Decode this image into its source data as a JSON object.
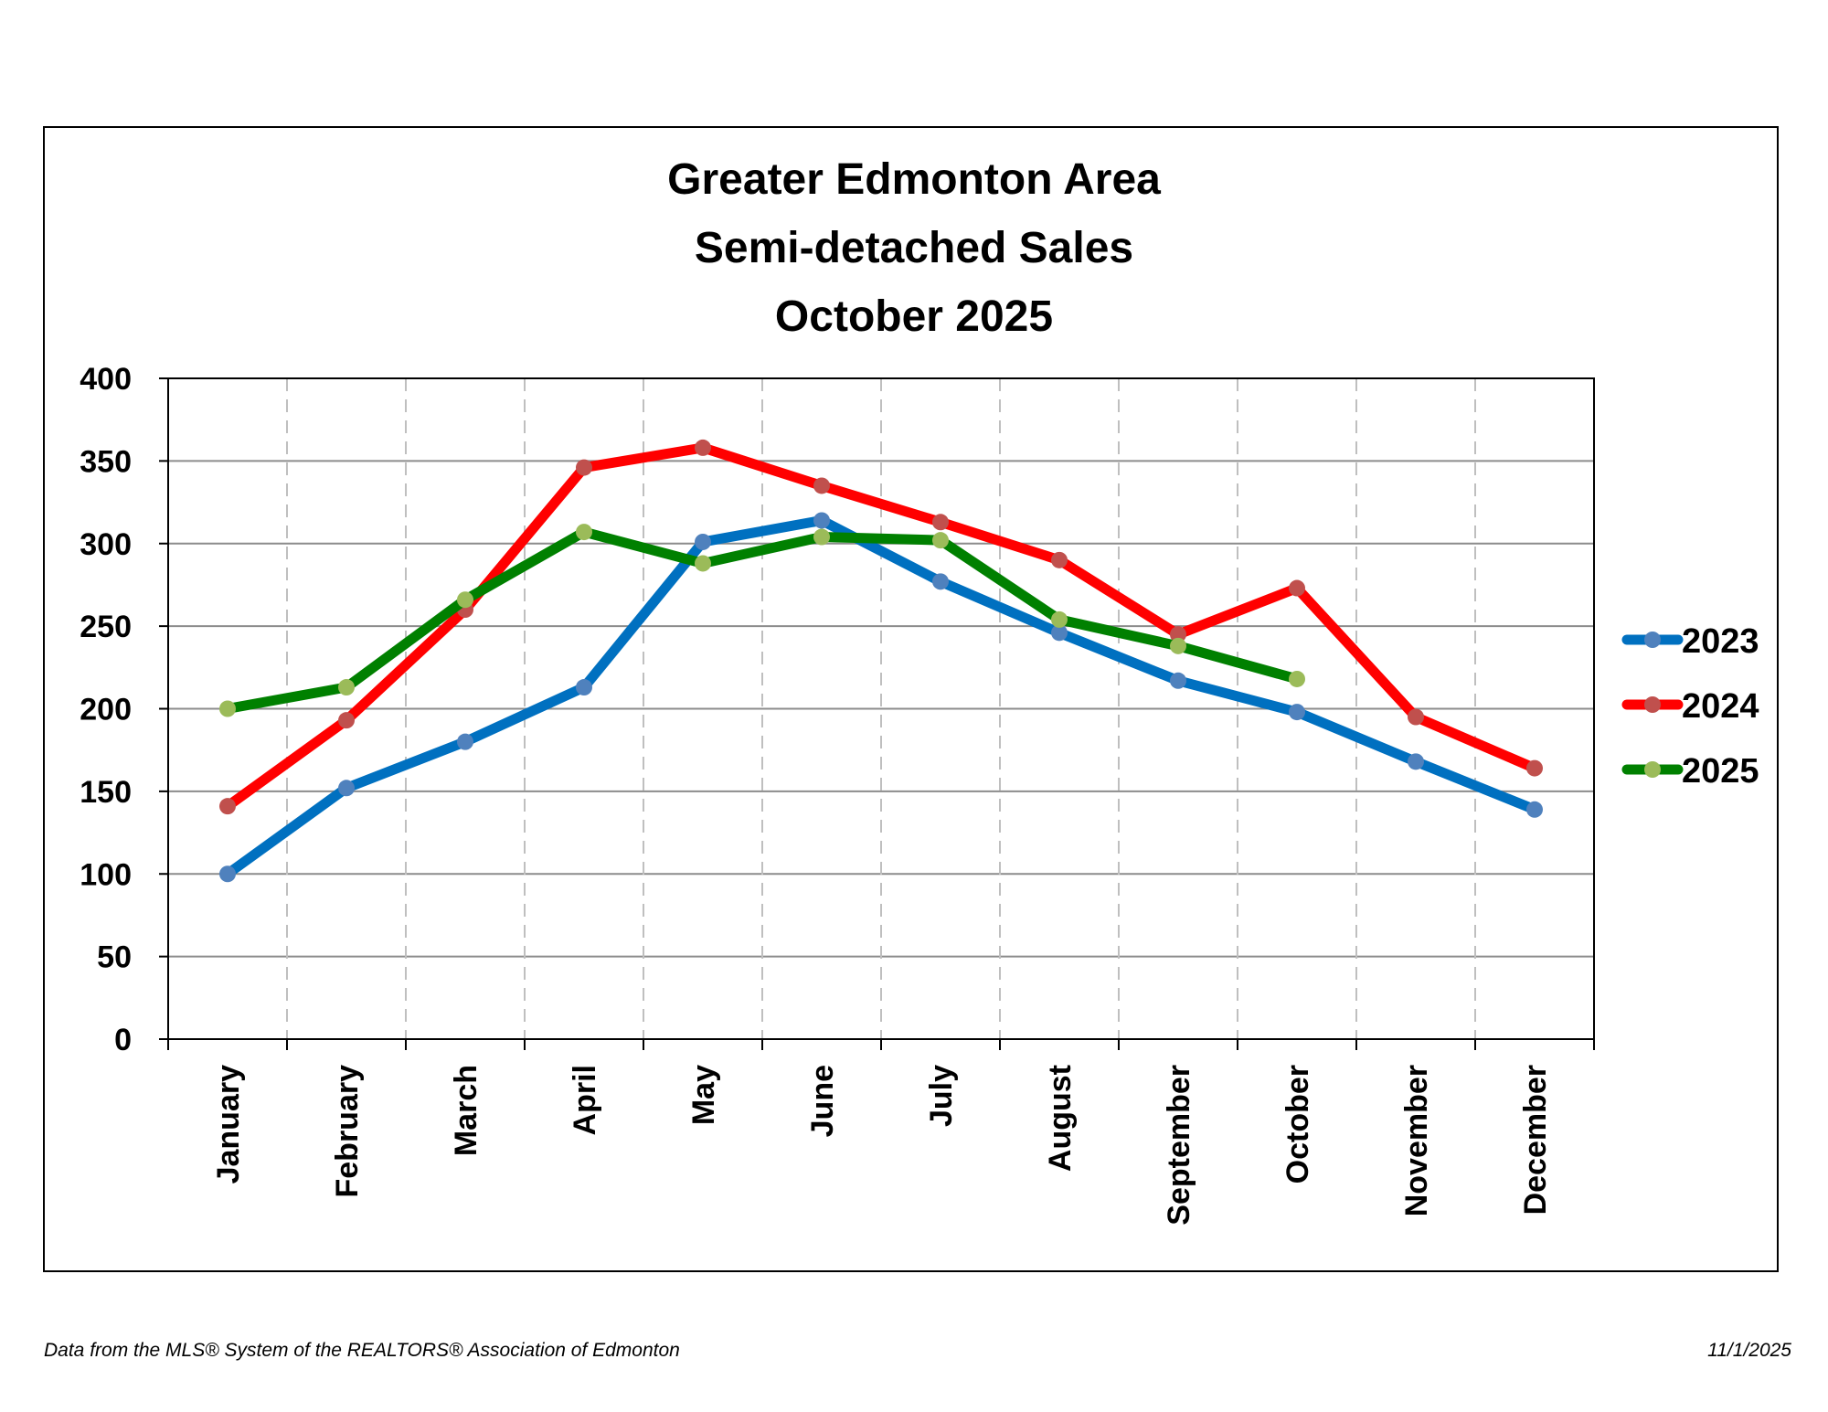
{
  "chart_data": {
    "type": "line",
    "title_lines": [
      "Greater Edmonton Area",
      "Semi-detached Sales",
      "October 2025"
    ],
    "categories": [
      "January",
      "February",
      "March",
      "April",
      "May",
      "June",
      "July",
      "August",
      "September",
      "October",
      "November",
      "December"
    ],
    "ylim": [
      0,
      400
    ],
    "yticks": [
      0,
      50,
      100,
      150,
      200,
      250,
      300,
      350,
      400
    ],
    "grid": true,
    "legend_position": "right",
    "series": [
      {
        "name": "2023",
        "color": "#0070C0",
        "marker_color": "#4F81BD",
        "values": [
          100,
          152,
          180,
          213,
          301,
          314,
          277,
          246,
          217,
          198,
          168,
          139
        ]
      },
      {
        "name": "2024",
        "color": "#FF0000",
        "marker_color": "#C0504D",
        "values": [
          141,
          193,
          260,
          346,
          358,
          335,
          313,
          290,
          245,
          273,
          195,
          164
        ]
      },
      {
        "name": "2025",
        "color": "#008000",
        "marker_color": "#9BBB59",
        "values": [
          200,
          213,
          266,
          307,
          288,
          304,
          302,
          254,
          238,
          218,
          null,
          null
        ]
      }
    ]
  },
  "footer": {
    "source": "Data from the MLS® System of the REALTORS® Association of Edmonton",
    "date": "11/1/2025"
  }
}
